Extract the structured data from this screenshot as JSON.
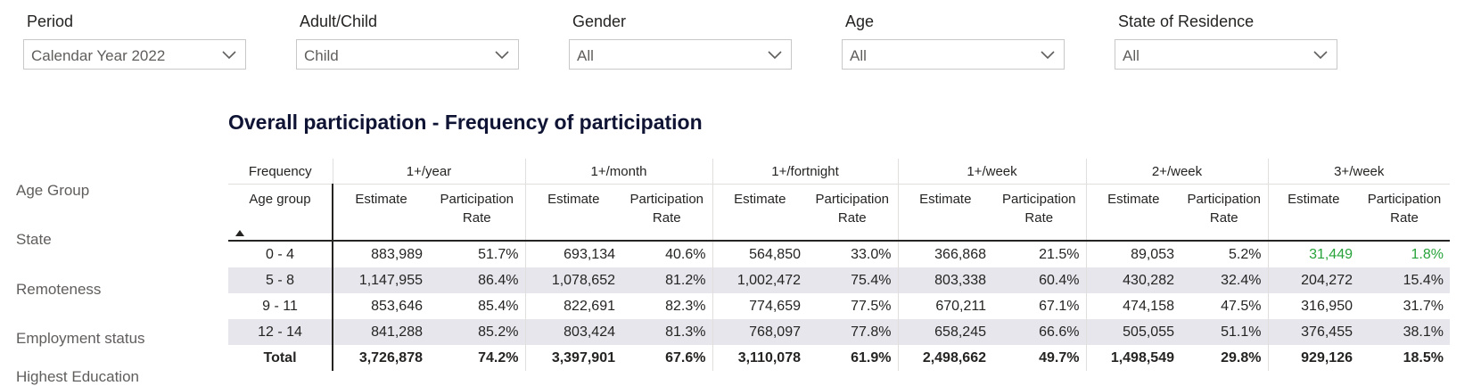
{
  "filters": [
    {
      "label": "Period",
      "value": "Calendar Year 2022"
    },
    {
      "label": "Adult/Child",
      "value": "Child"
    },
    {
      "label": "Gender",
      "value": "All"
    },
    {
      "label": "Age",
      "value": "All"
    },
    {
      "label": "State of Residence",
      "value": "All"
    }
  ],
  "sidebar": {
    "items": [
      "Age Group",
      "State",
      "Remoteness",
      "Employment status",
      "Highest Education"
    ]
  },
  "table": {
    "title": "Overall participation - Frequency of participation",
    "corner_top": "Frequency",
    "corner_bottom": "Age group",
    "frequencies": [
      "1+/year",
      "1+/month",
      "1+/fortnight",
      "1+/week",
      "2+/week",
      "3+/week"
    ],
    "subheaders": {
      "estimate": "Estimate",
      "rate_line1": "Participation",
      "rate_line2": "Rate"
    },
    "highlight_color": "#27a33a",
    "rows": [
      {
        "group": "0 - 4",
        "cells": [
          "883,989",
          "51.7%",
          "693,134",
          "40.6%",
          "564,850",
          "33.0%",
          "366,868",
          "21.5%",
          "89,053",
          "5.2%",
          "31,449",
          "1.8%"
        ]
      },
      {
        "group": "5 - 8",
        "cells": [
          "1,147,955",
          "86.4%",
          "1,078,652",
          "81.2%",
          "1,002,472",
          "75.4%",
          "803,338",
          "60.4%",
          "430,282",
          "32.4%",
          "204,272",
          "15.4%"
        ]
      },
      {
        "group": "9 - 11",
        "cells": [
          "853,646",
          "85.4%",
          "822,691",
          "82.3%",
          "774,659",
          "77.5%",
          "670,211",
          "67.1%",
          "474,158",
          "47.5%",
          "316,950",
          "31.7%"
        ]
      },
      {
        "group": "12 - 14",
        "cells": [
          "841,288",
          "85.2%",
          "803,424",
          "81.3%",
          "768,097",
          "77.8%",
          "658,245",
          "66.6%",
          "505,055",
          "51.1%",
          "376,455",
          "38.1%"
        ]
      }
    ],
    "total": {
      "group": "Total",
      "cells": [
        "3,726,878",
        "74.2%",
        "3,397,901",
        "67.6%",
        "3,110,078",
        "61.9%",
        "2,498,662",
        "49.7%",
        "1,498,549",
        "29.8%",
        "929,126",
        "18.5%"
      ]
    }
  }
}
